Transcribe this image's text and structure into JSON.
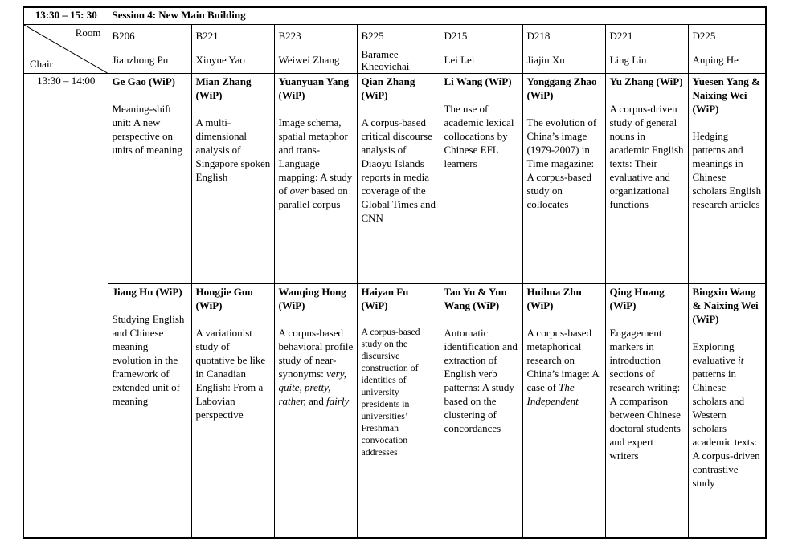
{
  "header": {
    "time_range": "13:30 – 15: 30",
    "session_title": "Session 4: New Main Building",
    "room_label": "Room",
    "chair_label": "Chair"
  },
  "time_slot": "13:30 – 14:00",
  "columns": [
    {
      "room": "B206",
      "chair": "Jianzhong Pu",
      "slot1": {
        "authors": "Ge Gao (WiP)",
        "title": [
          {
            "t": "Meaning-shift unit: A new perspective on units of meaning"
          }
        ]
      },
      "slot2": {
        "authors": "Jiang Hu (WiP)",
        "title": [
          {
            "t": "Studying English and Chinese meaning evolution in the framework of extended unit of meaning"
          }
        ]
      }
    },
    {
      "room": "B221",
      "chair": "Xinyue Yao",
      "slot1": {
        "authors": "Mian Zhang (WiP)",
        "title": [
          {
            "t": "A multi-dimensional analysis of Singapore spoken English"
          }
        ]
      },
      "slot2": {
        "authors": "Hongjie Guo (WiP)",
        "title": [
          {
            "t": "A variationist study of quotative be like in Canadian English: From a Labovian perspective"
          }
        ]
      }
    },
    {
      "room": "B223",
      "chair": "Weiwei Zhang",
      "slot1": {
        "authors": "Yuanyuan Yang (WiP)",
        "title": [
          {
            "t": "Image schema, spatial metaphor and trans-Language mapping: A study of "
          },
          {
            "t": "over",
            "i": true
          },
          {
            "t": " based on parallel corpus"
          }
        ]
      },
      "slot2": {
        "authors": "Wanqing Hong (WiP)",
        "title": [
          {
            "t": "A corpus-based behavioral profile study of near-synonyms: "
          },
          {
            "t": "very, quite, pretty, rather,",
            "i": true
          },
          {
            "t": " and "
          },
          {
            "t": "fairly",
            "i": true
          }
        ]
      }
    },
    {
      "room": "B225",
      "chair": "Baramee Kheovichai",
      "slot1": {
        "authors": "Qian Zhang (WiP)",
        "title": [
          {
            "t": "A corpus-based critical discourse analysis of Diaoyu Islands reports in media coverage of the Global Times and CNN"
          }
        ]
      },
      "slot2": {
        "authors": "Haiyan Fu (WiP)",
        "title": [
          {
            "t": "A corpus-based study on the discursive construction of identities of university presidents in universities’ Freshman convocation addresses"
          }
        ]
      }
    },
    {
      "room": "D215",
      "chair": "Lei Lei",
      "slot1": {
        "authors": "Li Wang (WiP)",
        "title": [
          {
            "t": "The use of academic lexical collocations by Chinese EFL learners"
          }
        ]
      },
      "slot2": {
        "authors": "Tao Yu & Yun Wang (WiP)",
        "title": [
          {
            "t": "Automatic identification and extraction of English verb patterns: A study based on the clustering of concordances"
          }
        ]
      }
    },
    {
      "room": "D218",
      "chair": "Jiajin Xu",
      "slot1": {
        "authors": "Yonggang Zhao (WiP)",
        "title": [
          {
            "t": "The evolution of China’s image (1979-2007) in Time magazine: A corpus-based study on collocates"
          }
        ]
      },
      "slot2": {
        "authors": "Huihua Zhu (WiP)",
        "title": [
          {
            "t": "A corpus-based metaphorical research on China’s image: A case of "
          },
          {
            "t": "The Independent",
            "i": true
          }
        ]
      }
    },
    {
      "room": "D221",
      "chair": "Ling Lin",
      "slot1": {
        "authors": "Yu Zhang (WiP)",
        "title": [
          {
            "t": "A corpus-driven study of general nouns in academic English texts: Their evaluative and organizational functions"
          }
        ]
      },
      "slot2": {
        "authors": "Qing Huang (WiP)",
        "title": [
          {
            "t": "Engagement markers in introduction sections of research writing: A comparison between Chinese doctoral students and expert writers"
          }
        ]
      }
    },
    {
      "room": "D225",
      "chair": "Anping He",
      "slot1": {
        "authors": "Yuesen Yang & Naixing Wei (WiP)",
        "title": [
          {
            "t": "Hedging patterns and meanings in Chinese scholars English research articles"
          }
        ]
      },
      "slot2": {
        "authors": "Bingxin Wang & Naixing Wei (WiP)",
        "title": [
          {
            "t": "Exploring evaluative "
          },
          {
            "t": "it",
            "i": true
          },
          {
            "t": " patterns in Chinese scholars and Western scholars academic texts: A corpus-driven contrastive study"
          }
        ]
      }
    }
  ]
}
